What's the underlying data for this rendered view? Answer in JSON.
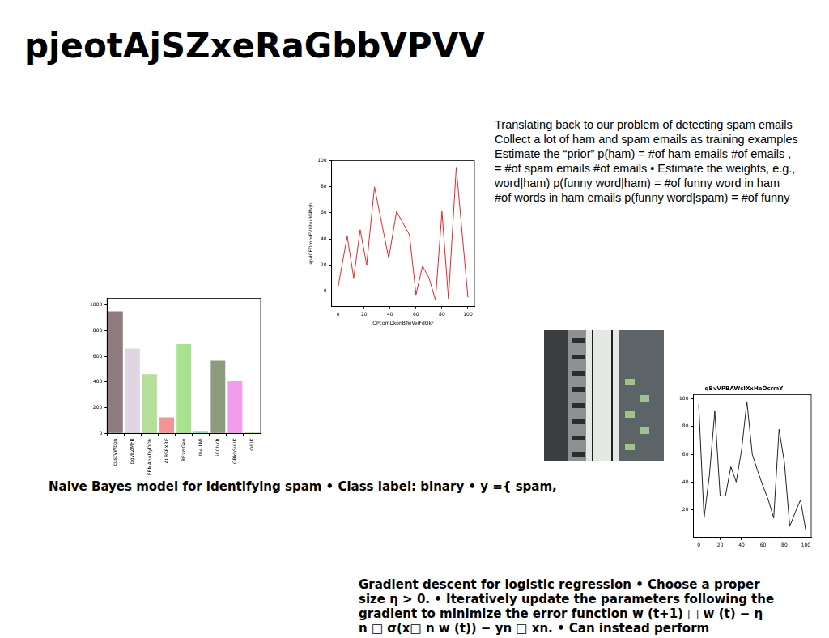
{
  "title": "pjeotAjSZxeRaGbbVPVV",
  "text_blocks": [
    {
      "lines": [
        "Translating back to our problem of detecting spam emails",
        "Collect a lot of ham and spam emails as training examples",
        "Estimate the “prior” p(ham) = #of ham emails #of emails ,",
        "= #of spam emails #of emails • Estimate the weights, e.g.,",
        "word|ham) p(funny word|ham) = #of funny word in ham",
        "#of words in ham emails p(funny word|spam) = #of funny"
      ]
    },
    {
      "lines": [
        "Naive Bayes model for identifying spam • Class label: binary • y ={ spam,"
      ]
    },
    {
      "lines": [
        "Gradient descent for logistic regression • Choose a proper",
        "size η > 0. • Iteratively update the parameters following the",
        "gradient to minimize the error function w (t+1) □ w (t) − η",
        "n □ σ(x□ n w (t)) − yn □ xn. • Can instead perform"
      ]
    }
  ],
  "chart_data": [
    {
      "type": "line",
      "x_label": "OPcomDkonBTwVeiFdQkr",
      "y_label": "apdCFDmhrFVUbudGMqb",
      "color": "#e8262a",
      "x": [
        0,
        7,
        12,
        17,
        22,
        28,
        39,
        45,
        55,
        60,
        65,
        70,
        75,
        80,
        85,
        91,
        100
      ],
      "values": [
        3,
        42,
        10,
        47,
        20,
        80,
        25,
        61,
        43,
        -3,
        19,
        10,
        -7,
        61,
        -6,
        95,
        -5
      ],
      "xlim": [
        -5,
        105
      ],
      "xticks": [
        0,
        20,
        40,
        60,
        80,
        100
      ],
      "ylim": [
        -12,
        100
      ],
      "yticks": [
        0,
        20,
        40,
        60,
        80,
        100
      ],
      "grid": false,
      "legend": null
    },
    {
      "type": "bar",
      "categories": [
        "custVWbgu",
        "bgvEZMFB",
        "FBMAhuDyDDb",
        "ALBSEXRE",
        "REzztGan",
        "the LMl",
        "iCCbKR",
        "GRkhSvUK",
        "sVUK"
      ],
      "values": [
        950,
        660,
        460,
        125,
        695,
        20,
        565,
        410,
        15
      ],
      "colors": [
        "#8e7b7d",
        "#e0d5e3",
        "#b4df98",
        "#f39494",
        "#a9e28f",
        "#7fe2ac",
        "#8c9b7c",
        "#f19cec",
        "#c9f0a2"
      ],
      "ylim": [
        0,
        1050
      ],
      "yticks": [
        0,
        200,
        400,
        600,
        800,
        1000
      ],
      "grid": false,
      "legend": null
    },
    {
      "type": "line",
      "title": "qBvVPBAWsIXxHeOcrmY",
      "color": "#222222",
      "x": [
        0,
        5,
        10,
        15,
        20,
        25,
        30,
        35,
        40,
        45,
        50,
        55,
        60,
        65,
        70,
        75,
        80,
        85,
        90,
        95,
        100
      ],
      "values": [
        96,
        14,
        45,
        91,
        30,
        30,
        51,
        40,
        63,
        98,
        60,
        48,
        37,
        27,
        14,
        78,
        54,
        8,
        18,
        27,
        5
      ],
      "xlim": [
        -5,
        105
      ],
      "xticks": [
        0,
        20,
        40,
        60,
        80,
        100
      ],
      "ylim": [
        0,
        103
      ],
      "yticks": [
        20,
        40,
        60,
        80,
        100
      ],
      "grid": false,
      "legend": null
    }
  ]
}
